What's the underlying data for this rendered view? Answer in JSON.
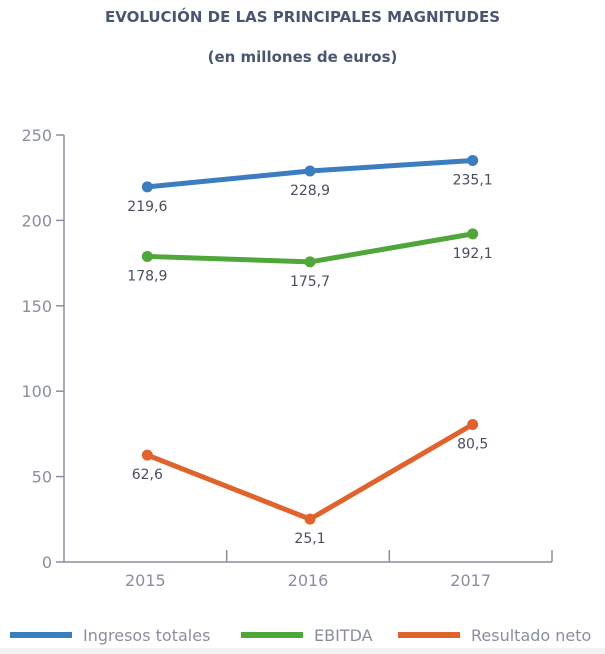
{
  "chart_data": {
    "type": "line",
    "title": "EVOLUCIÓN DE LAS PRINCIPALES MAGNITUDES",
    "subtitle": "(en millones de euros)",
    "xlabel": "",
    "ylabel": "",
    "categories": [
      "2015",
      "2016",
      "2017"
    ],
    "ylim": [
      0,
      250
    ],
    "yticks": [
      0,
      50,
      100,
      150,
      200,
      250
    ],
    "grid": false,
    "legend_position": "bottom",
    "series": [
      {
        "name": "Ingresos totales",
        "color": "#3b7dbf",
        "values": [
          219.6,
          228.9,
          235.1
        ],
        "labels": [
          "219,6",
          "228,9",
          "235,1"
        ]
      },
      {
        "name": "EBITDA",
        "color": "#4fa63a",
        "values": [
          178.9,
          175.7,
          192.1
        ],
        "labels": [
          "178,9",
          "175,7",
          "192,1"
        ]
      },
      {
        "name": "Resultado neto",
        "color": "#e0632d",
        "values": [
          62.6,
          25.1,
          80.5
        ],
        "labels": [
          "62,6",
          "25,1",
          "80,5"
        ]
      }
    ]
  }
}
